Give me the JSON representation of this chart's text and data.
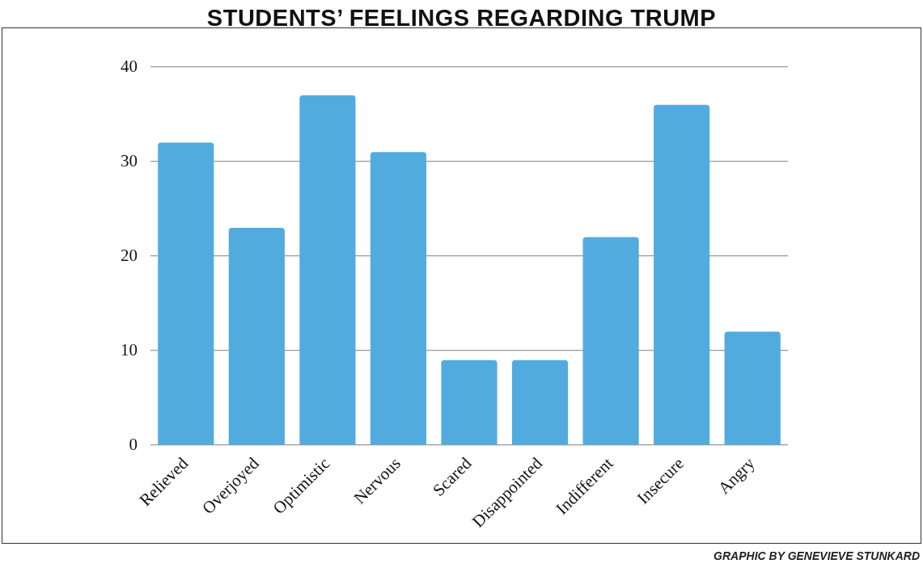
{
  "chart_data": {
    "type": "bar",
    "title": "STUDENTS’ FEELINGS REGARDING TRUMP",
    "categories": [
      "Relieved",
      "Overjoyed",
      "Optimistic",
      "Nervous",
      "Scared",
      "Disappointed",
      "Indifferent",
      "Insecure",
      "Angry"
    ],
    "values": [
      32,
      23,
      37,
      31,
      9,
      9,
      22,
      36,
      12
    ],
    "color": "#52abdf",
    "ylim": [
      0,
      40
    ],
    "yticks": [
      0,
      10,
      20,
      30,
      40
    ],
    "grid": "y",
    "legend": false,
    "annotations": [
      "GRAPHIC BY GENEVIEVE STUNKARD"
    ]
  }
}
